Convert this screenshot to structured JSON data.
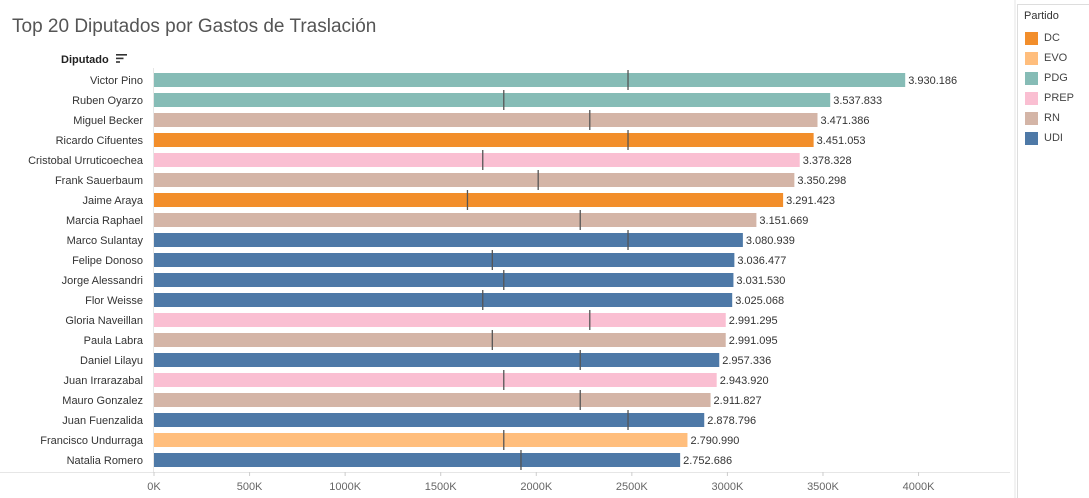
{
  "header": {
    "title": "Top 20 Diputados por Gastos de Traslación",
    "dimension_label": "Diputado"
  },
  "legend": {
    "title": "Partido",
    "items": [
      {
        "label": "DC",
        "color": "#f28e2b"
      },
      {
        "label": "EVO",
        "color": "#ffbe7d"
      },
      {
        "label": "PDG",
        "color": "#86bcb6"
      },
      {
        "label": "PREP",
        "color": "#fabfd2"
      },
      {
        "label": "RN",
        "color": "#d4b5a7"
      },
      {
        "label": "UDI",
        "color": "#4e79a7"
      }
    ]
  },
  "chart_data": {
    "type": "bar",
    "orientation": "horizontal",
    "title": "Top 20 Diputados por Gastos de Traslación",
    "xlabel": "",
    "ylabel": "Diputado",
    "xlim": [
      0,
      4400000
    ],
    "x_ticks": [
      0,
      500000,
      1000000,
      1500000,
      2000000,
      2500000,
      3000000,
      3500000,
      4000000
    ],
    "x_tick_labels": [
      "0K",
      "500K",
      "1000K",
      "1500K",
      "2000K",
      "2500K",
      "3000K",
      "3500K",
      "4000K"
    ],
    "grid": false,
    "legend_position": "right",
    "bars": [
      {
        "name": "Victor Pino",
        "value": 3930186,
        "label": "3.930.186",
        "party": "PDG",
        "reference": 2480000
      },
      {
        "name": "Ruben Oyarzo",
        "value": 3537833,
        "label": "3.537.833",
        "party": "PDG",
        "reference": 1830000
      },
      {
        "name": "Miguel Becker",
        "value": 3471386,
        "label": "3.471.386",
        "party": "RN",
        "reference": 2280000
      },
      {
        "name": "Ricardo Cifuentes",
        "value": 3451053,
        "label": "3.451.053",
        "party": "DC",
        "reference": 2480000
      },
      {
        "name": "Cristobal Urruticoechea",
        "value": 3378328,
        "label": "3.378.328",
        "party": "PREP",
        "reference": 1720000
      },
      {
        "name": "Frank Sauerbaum",
        "value": 3350298,
        "label": "3.350.298",
        "party": "RN",
        "reference": 2010000
      },
      {
        "name": "Jaime Araya",
        "value": 3291423,
        "label": "3.291.423",
        "party": "DC",
        "reference": 1640000
      },
      {
        "name": "Marcia Raphael",
        "value": 3151669,
        "label": "3.151.669",
        "party": "RN",
        "reference": 2230000
      },
      {
        "name": "Marco Sulantay",
        "value": 3080939,
        "label": "3.080.939",
        "party": "UDI",
        "reference": 2480000
      },
      {
        "name": "Felipe Donoso",
        "value": 3036477,
        "label": "3.036.477",
        "party": "UDI",
        "reference": 1770000
      },
      {
        "name": "Jorge Alessandri",
        "value": 3031530,
        "label": "3.031.530",
        "party": "UDI",
        "reference": 1830000
      },
      {
        "name": "Flor Weisse",
        "value": 3025068,
        "label": "3.025.068",
        "party": "UDI",
        "reference": 1720000
      },
      {
        "name": "Gloria Naveillan",
        "value": 2991295,
        "label": "2.991.295",
        "party": "PREP",
        "reference": 2280000
      },
      {
        "name": "Paula Labra",
        "value": 2991095,
        "label": "2.991.095",
        "party": "RN",
        "reference": 1770000
      },
      {
        "name": "Daniel Lilayu",
        "value": 2957336,
        "label": "2.957.336",
        "party": "UDI",
        "reference": 2230000
      },
      {
        "name": "Juan Irrarazabal",
        "value": 2943920,
        "label": "2.943.920",
        "party": "PREP",
        "reference": 1830000
      },
      {
        "name": "Mauro Gonzalez",
        "value": 2911827,
        "label": "2.911.827",
        "party": "RN",
        "reference": 2230000
      },
      {
        "name": "Juan Fuenzalida",
        "value": 2878796,
        "label": "2.878.796",
        "party": "UDI",
        "reference": 2480000
      },
      {
        "name": "Francisco Undurraga",
        "value": 2790990,
        "label": "2.790.990",
        "party": "EVO",
        "reference": 1830000
      },
      {
        "name": "Natalia Romero",
        "value": 2752686,
        "label": "2.752.686",
        "party": "UDI",
        "reference": 1920000
      }
    ]
  }
}
